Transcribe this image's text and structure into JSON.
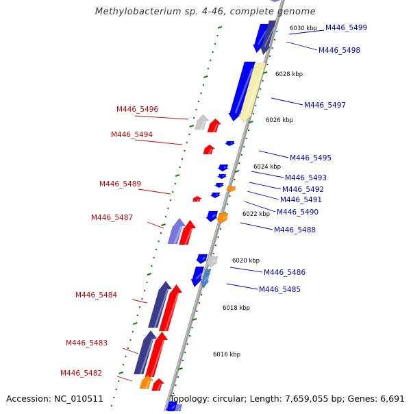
{
  "title": "Methylobacterium sp. 4-46, complete genome",
  "footer": {
    "accession": "Accession: NC_010511",
    "topology": "Topology: circular; Length: 7,659,055 bp; Genes: 6,691"
  },
  "colors": {
    "forward_label": "#c00000",
    "reverse_label": "#0000c0",
    "red": "#ff0000",
    "blue": "#0000ff",
    "navy": "#3b3b8c",
    "purple": "#7777dd",
    "orange": "#ff8c00",
    "yellow": "#f5eeaa",
    "grey": "#c8c8c8",
    "steel": "#4a7fc8",
    "tick": "#008000",
    "backbone": "#888888"
  },
  "scale_labels": [
    "6030 kbp",
    "6028 kbp",
    "6026 kbp",
    "6024 kbp",
    "6022 kbp",
    "6020 kbp",
    "6018 kbp",
    "6016 kbp"
  ],
  "left_labels": [
    "M446_5496",
    "M446_5494",
    "M446_5489",
    "M446_5487",
    "M446_5484",
    "M446_5483",
    "M446_5482"
  ],
  "right_labels": [
    "M446_5499",
    "M446_5498",
    "M446_5497",
    "M446_5495",
    "M446_5493",
    "M446_5492",
    "M446_5491",
    "M446_5490",
    "M446_5488",
    "M446_5486",
    "M446_5485"
  ]
}
